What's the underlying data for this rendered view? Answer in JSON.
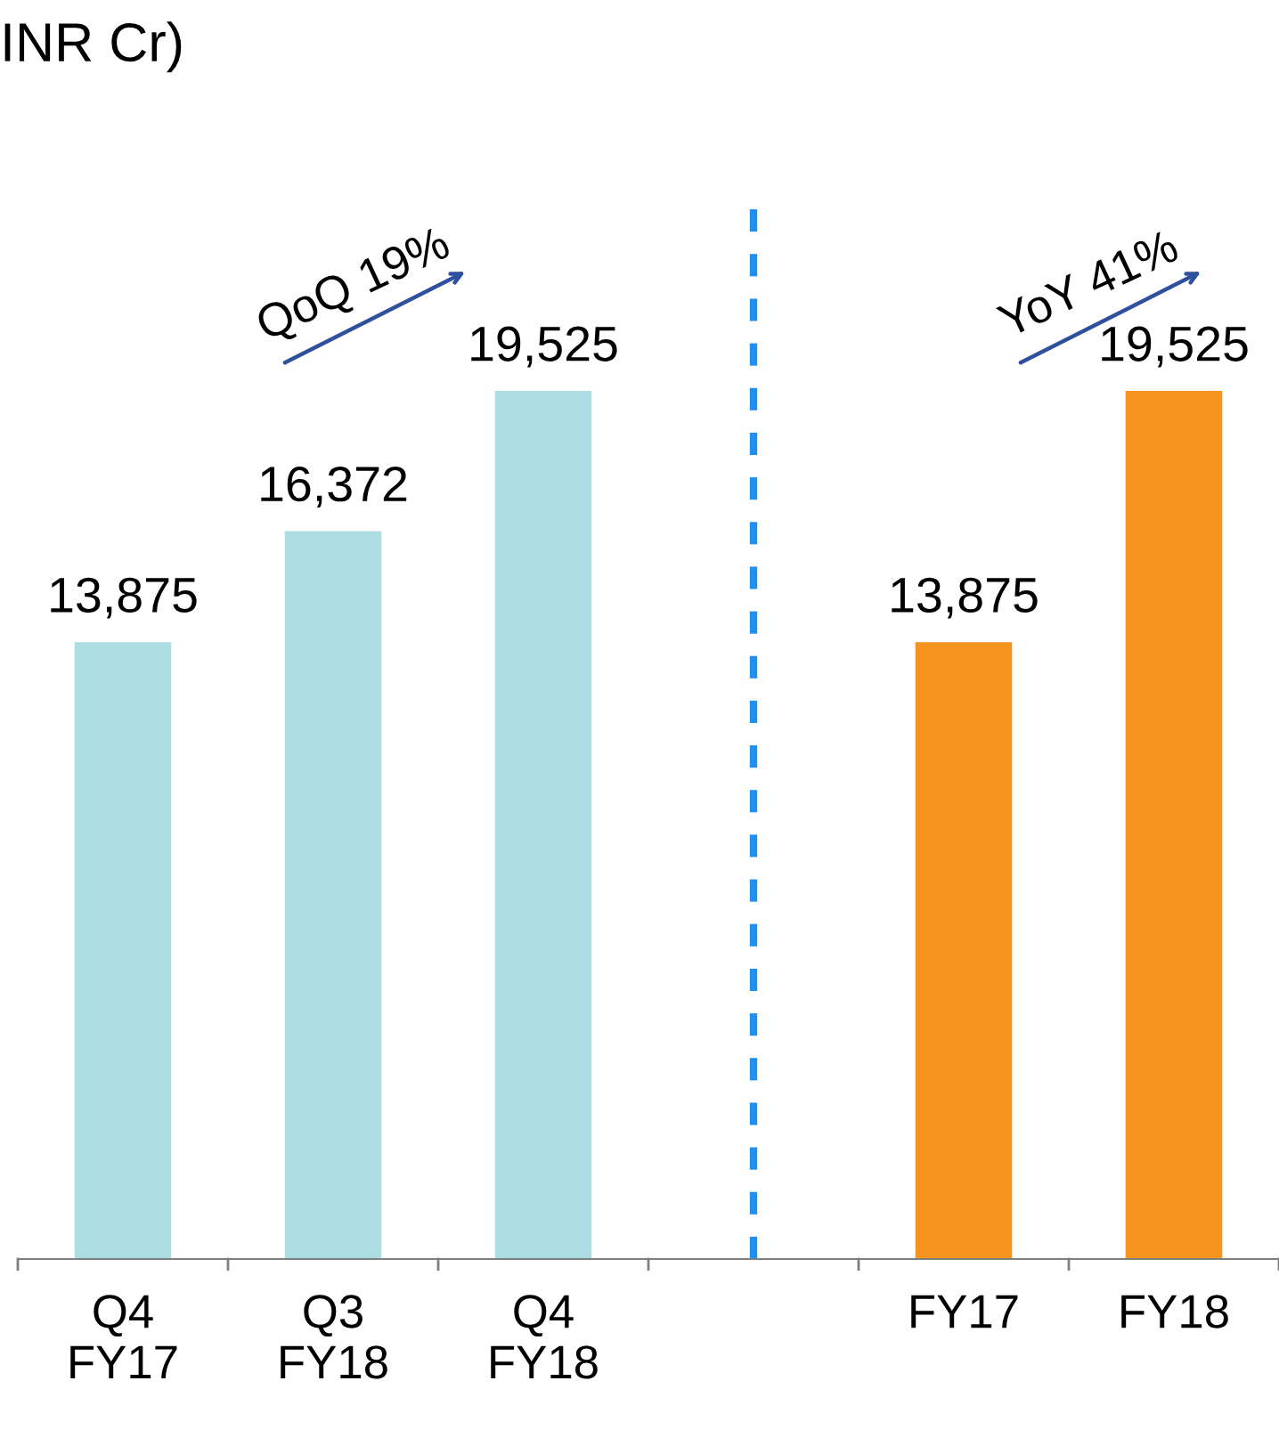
{
  "chart_data": {
    "type": "bar",
    "title": "INR Cr)",
    "categories": [
      "Q4\nFY17",
      "Q3\nFY18",
      "Q4\nFY18",
      null,
      "FY17",
      "FY18"
    ],
    "values": [
      13875,
      16372,
      19525,
      null,
      13875,
      19525
    ],
    "colors": [
      "#acdde2",
      "#acdde2",
      "#acdde2",
      null,
      "#f59520",
      "#f59520"
    ],
    "value_labels": [
      "13,875",
      "16,372",
      "19,525",
      null,
      "13,875",
      "19,525"
    ],
    "annotations": [
      "QoQ 19%",
      "YoY 41%"
    ],
    "grid": false,
    "legend": false
  }
}
